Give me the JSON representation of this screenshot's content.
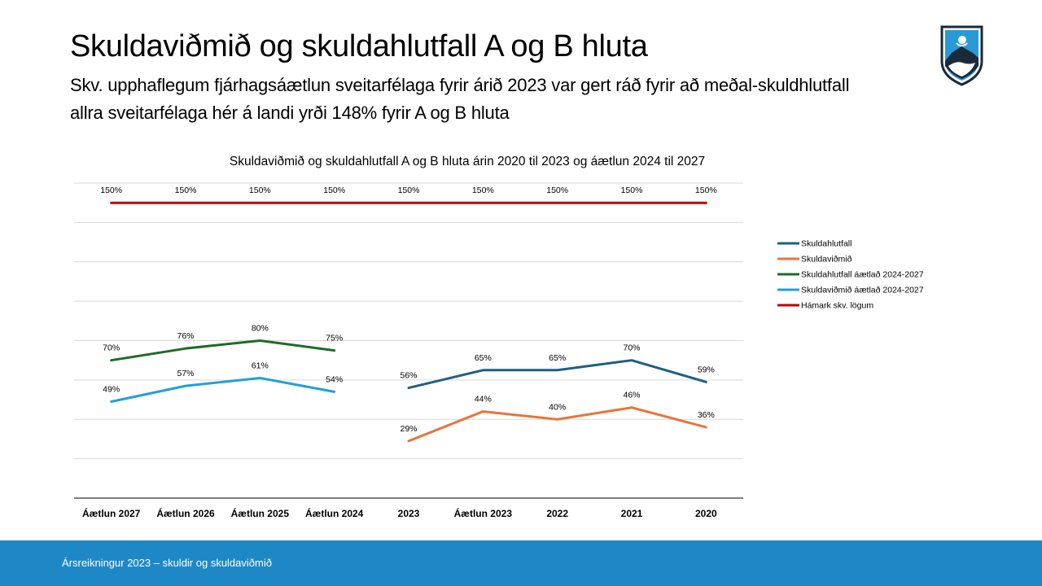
{
  "slide": {
    "title": "Skuldaviðmið og skuldahlutfall A og B hluta",
    "subtitle": "Skv. upphaflegum fjárhagsáætlun sveitarfélaga fyrir árið 2023 var gert ráð fyrir að meðal-skuldhlutfall allra sveitarfélaga hér á landi yrði 148% fyrir A og B hluta"
  },
  "footer": {
    "text": "Ársreikningur 2023 – skuldir og skuldaviðmið"
  },
  "logo": {
    "icon": "coat-of-arms-shield-icon"
  },
  "colors": {
    "footer_bg": "#1e88c7",
    "skuldahlutfall": "#1f5f82",
    "skuldavidmid": "#e8753a",
    "skuldahlutfall_aetlad": "#1f6b26",
    "skuldavidmid_aetlad": "#22a0d8",
    "hamark": "#c00000"
  },
  "chart_data": {
    "type": "line",
    "title": "Skuldaviðmið og skuldahlutfall A og B hluta árin 2020 til 2023 og áætlun 2024 til 2027",
    "xlabel": "",
    "ylabel": "",
    "ylim": [
      0,
      160
    ],
    "grid": true,
    "y_axis_labels_shown": false,
    "legend_position": "right",
    "categories": [
      "Áætlun 2027",
      "Áætlun 2026",
      "Áætlun 2025",
      "Áætlun 2024",
      "2023",
      "Áætlun 2023",
      "2022",
      "2021",
      "2020"
    ],
    "series": [
      {
        "name": "Skuldahlutfall",
        "color": "#1f5f82",
        "values": [
          null,
          null,
          null,
          null,
          56,
          65,
          65,
          70,
          59
        ],
        "labels": [
          "",
          "",
          "",
          "",
          "56%",
          "65%",
          "65%",
          "70%",
          "59%"
        ],
        "label_pos": "above"
      },
      {
        "name": "Skuldaviðmið",
        "color": "#e8753a",
        "values": [
          null,
          null,
          null,
          null,
          29,
          44,
          40,
          46,
          36
        ],
        "labels": [
          "",
          "",
          "",
          "",
          "29%",
          "44%",
          "40%",
          "46%",
          "36%"
        ],
        "label_pos": "above"
      },
      {
        "name": "Skuldahlutfall  áætlað 2024-2027",
        "color": "#1f6b26",
        "values": [
          70,
          76,
          80,
          75,
          null,
          null,
          null,
          null,
          null
        ],
        "labels": [
          "70%",
          "76%",
          "80%",
          "75%",
          "",
          "",
          "",
          "",
          ""
        ],
        "label_pos": "above"
      },
      {
        "name": "Skuldaviðmið áætlað 2024-2027",
        "color": "#22a0d8",
        "values": [
          49,
          57,
          61,
          54,
          null,
          null,
          null,
          null,
          null
        ],
        "labels": [
          "49%",
          "57%",
          "61%",
          "54%",
          "",
          "",
          "",
          "",
          ""
        ],
        "label_pos": "above"
      },
      {
        "name": "Hámark skv. lögum",
        "color": "#c00000",
        "values": [
          150,
          150,
          150,
          150,
          150,
          150,
          150,
          150,
          150
        ],
        "labels": [
          "150%",
          "150%",
          "150%",
          "150%",
          "150%",
          "150%",
          "150%",
          "150%",
          "150%"
        ],
        "label_pos": "above"
      }
    ]
  }
}
